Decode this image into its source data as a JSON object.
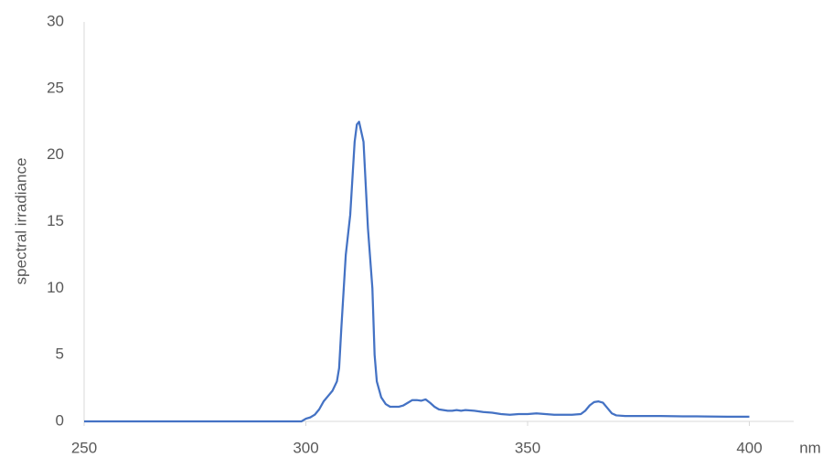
{
  "chart_data": {
    "type": "line",
    "x_label": "nm",
    "y_label": "spectral irradiance",
    "x": [
      250,
      299,
      300,
      301,
      302,
      303,
      304,
      305,
      306,
      307,
      307.5,
      308,
      309,
      310,
      311,
      311.5,
      312,
      313,
      314,
      315,
      315.5,
      316,
      317,
      318,
      319,
      320,
      321,
      322,
      323,
      324,
      325,
      326,
      327,
      328,
      329,
      330,
      331,
      332,
      333,
      334,
      335,
      336,
      338,
      340,
      342,
      344,
      346,
      348,
      350,
      352,
      354,
      356,
      358,
      360,
      362,
      363,
      364,
      365,
      366,
      367,
      368,
      369,
      370,
      372,
      375,
      380,
      385,
      390,
      395,
      400
    ],
    "series": [
      {
        "color": "#4472c4",
        "values": [
          0,
          0,
          0.2,
          0.3,
          0.5,
          0.9,
          1.5,
          1.9,
          2.3,
          3.0,
          4,
          7,
          12.5,
          15.5,
          21,
          22.3,
          22.5,
          21,
          14.5,
          10,
          5,
          3,
          1.8,
          1.3,
          1.1,
          1.1,
          1.1,
          1.2,
          1.4,
          1.6,
          1.6,
          1.55,
          1.65,
          1.4,
          1.1,
          0.9,
          0.85,
          0.8,
          0.8,
          0.85,
          0.8,
          0.85,
          0.8,
          0.7,
          0.65,
          0.55,
          0.5,
          0.55,
          0.55,
          0.6,
          0.55,
          0.5,
          0.5,
          0.5,
          0.55,
          0.8,
          1.2,
          1.45,
          1.5,
          1.4,
          1.0,
          0.6,
          0.45,
          0.4,
          0.4,
          0.4,
          0.38,
          0.37,
          0.35,
          0.35
        ]
      }
    ],
    "xlim": [
      250,
      410
    ],
    "xticks": [
      250,
      300,
      350,
      400
    ],
    "ylim": [
      0,
      30
    ],
    "yticks": [
      0,
      5,
      10,
      15,
      20,
      25,
      30
    ],
    "grid": false
  }
}
